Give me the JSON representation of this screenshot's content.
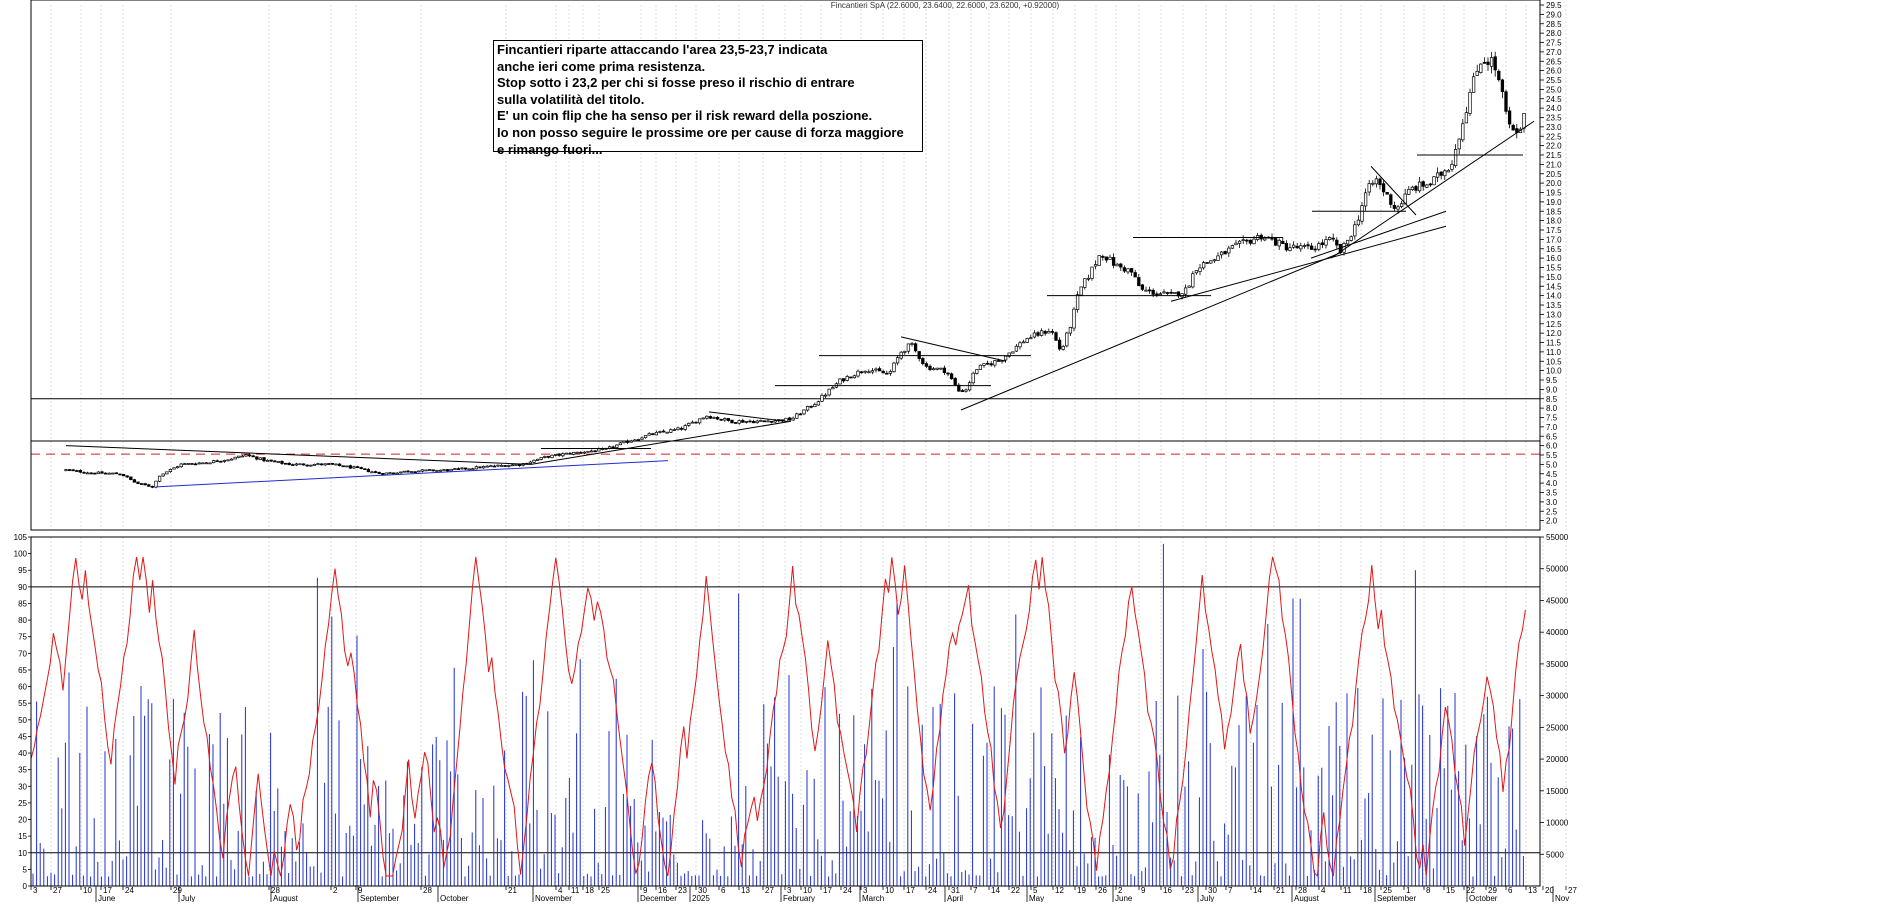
{
  "title": "Fincantieri SpA (22.6000, 23.6400, 22.6000, 23.6200, +0.92000)",
  "annotation_lines": [
    "Fincantieri riparte attaccando l'area 23,5-23,7 indicata",
    "anche ieri come prima resistenza.",
    "Stop sotto i 23,2 per chi si fosse preso il rischio di entrare",
    "sulla volatilità del titolo.",
    "E' un coin flip che ha senso per il risk reward della poszione.",
    "Io non posso seguire le prossime ore per cause di forza maggiore",
    " e rimango fuori..."
  ],
  "colors": {
    "candle": "#000000",
    "trendline_blue": "#1f2fcf",
    "support_dash": "#d42020",
    "oscillator": "#e01818",
    "volume": "#2030d0",
    "grid": "#c8c8c8"
  },
  "chart_data": [
    {
      "type": "candlestick",
      "name": "price",
      "ylim": [
        1.5,
        29.5
      ],
      "yticks": [
        "2.0",
        "2.5",
        "3.0",
        "3.5",
        "4.0",
        "4.5",
        "5.0",
        "5.5",
        "6.0",
        "6.5",
        "7.0",
        "7.5",
        "8.0",
        "8.5",
        "9.0",
        "9.5",
        "10.0",
        "10.5",
        "11.0",
        "11.5",
        "12.0",
        "12.5",
        "13.0",
        "13.5",
        "14.0",
        "14.5",
        "15.0",
        "15.5",
        "16.0",
        "16.5",
        "17.0",
        "17.5",
        "18.0",
        "18.5",
        "19.0",
        "19.5",
        "20.0",
        "20.5",
        "21.0",
        "21.5",
        "22.0",
        "22.5",
        "23.0",
        "23.5",
        "24.0",
        "24.5",
        "25.0",
        "25.5",
        "26.0",
        "26.5",
        "27.0",
        "27.5",
        "28.0",
        "28.5",
        "29.0",
        "29.5"
      ],
      "x_day_ticks": [
        [
          0,
          "3"
        ],
        [
          20,
          "27"
        ],
        [
          50,
          "10"
        ],
        [
          70,
          "17"
        ],
        [
          92,
          "24"
        ],
        [
          140,
          "29"
        ],
        [
          238,
          "28"
        ],
        [
          300,
          "2"
        ],
        [
          325,
          "9"
        ],
        [
          390,
          "28"
        ],
        [
          475,
          "21"
        ],
        [
          525,
          "4"
        ],
        [
          538,
          "11"
        ],
        [
          552,
          "18"
        ],
        [
          568,
          "25"
        ],
        [
          610,
          "9"
        ],
        [
          625,
          "16"
        ],
        [
          645,
          "23"
        ],
        [
          665,
          "30"
        ],
        [
          688,
          "6"
        ],
        [
          708,
          "13"
        ],
        [
          732,
          "27"
        ],
        [
          754,
          "3"
        ],
        [
          770,
          "10"
        ],
        [
          790,
          "17"
        ],
        [
          810,
          "24"
        ],
        [
          830,
          "3"
        ],
        [
          852,
          "10"
        ],
        [
          873,
          "17"
        ],
        [
          895,
          "24"
        ],
        [
          918,
          "31"
        ],
        [
          940,
          "7"
        ],
        [
          958,
          "14"
        ],
        [
          978,
          "22"
        ],
        [
          1000,
          "5"
        ],
        [
          1022,
          "12"
        ],
        [
          1044,
          "19"
        ],
        [
          1065,
          "26"
        ],
        [
          1085,
          "2"
        ],
        [
          1108,
          "9"
        ],
        [
          1130,
          "16"
        ],
        [
          1152,
          "23"
        ],
        [
          1175,
          "30"
        ],
        [
          1195,
          "7"
        ],
        [
          1220,
          "14"
        ],
        [
          1243,
          "21"
        ],
        [
          1265,
          "28"
        ],
        [
          1288,
          "4"
        ],
        [
          1310,
          "11"
        ],
        [
          1330,
          "18"
        ],
        [
          1350,
          "25"
        ],
        [
          1373,
          "1"
        ],
        [
          1393,
          "8"
        ],
        [
          1413,
          "15"
        ],
        [
          1433,
          "22"
        ],
        [
          1455,
          "29"
        ],
        [
          1475,
          "6"
        ],
        [
          1495,
          "13"
        ],
        [
          1512,
          "20"
        ],
        [
          1535,
          "27"
        ]
      ],
      "x_month_ticks": [
        [
          65,
          "June"
        ],
        [
          148,
          "July"
        ],
        [
          240,
          "August"
        ],
        [
          327,
          "September"
        ],
        [
          407,
          "October"
        ],
        [
          502,
          "November"
        ],
        [
          607,
          "December"
        ],
        [
          659,
          "2025"
        ],
        [
          750,
          "February"
        ],
        [
          829,
          "March"
        ],
        [
          914,
          "April"
        ],
        [
          996,
          "May"
        ],
        [
          1082,
          "June"
        ],
        [
          1167,
          "July"
        ],
        [
          1261,
          "August"
        ],
        [
          1344,
          "September"
        ],
        [
          1436,
          "October"
        ],
        [
          1522,
          "Nov"
        ]
      ],
      "anchors": [
        [
          35,
          4.7
        ],
        [
          60,
          4.55
        ],
        [
          90,
          4.5
        ],
        [
          105,
          4.0
        ],
        [
          122,
          3.8
        ],
        [
          128,
          4.4
        ],
        [
          150,
          5.0
        ],
        [
          175,
          5.1
        ],
        [
          200,
          5.3
        ],
        [
          215,
          5.5
        ],
        [
          235,
          5.2
        ],
        [
          260,
          5.0
        ],
        [
          300,
          5.0
        ],
        [
          325,
          4.8
        ],
        [
          350,
          4.5
        ],
        [
          380,
          4.65
        ],
        [
          420,
          4.7
        ],
        [
          460,
          4.9
        ],
        [
          490,
          5.0
        ],
        [
          515,
          5.4
        ],
        [
          540,
          5.6
        ],
        [
          575,
          5.8
        ],
        [
          595,
          6.2
        ],
        [
          620,
          6.6
        ],
        [
          650,
          6.9
        ],
        [
          675,
          7.6
        ],
        [
          700,
          7.3
        ],
        [
          730,
          7.3
        ],
        [
          760,
          7.4
        ],
        [
          785,
          8.3
        ],
        [
          810,
          9.5
        ],
        [
          835,
          10.1
        ],
        [
          858,
          9.8
        ],
        [
          870,
          11.0
        ],
        [
          880,
          11.4
        ],
        [
          895,
          10.2
        ],
        [
          915,
          10.0
        ],
        [
          928,
          8.9
        ],
        [
          935,
          9.0
        ],
        [
          945,
          10.1
        ],
        [
          970,
          10.6
        ],
        [
          995,
          11.7
        ],
        [
          1020,
          12.2
        ],
        [
          1030,
          11.0
        ],
        [
          1040,
          12.5
        ],
        [
          1048,
          14.2
        ],
        [
          1060,
          15.3
        ],
        [
          1070,
          16.3
        ],
        [
          1085,
          15.6
        ],
        [
          1100,
          15.3
        ],
        [
          1110,
          14.3
        ],
        [
          1140,
          14.0
        ],
        [
          1155,
          14.3
        ],
        [
          1165,
          15.5
        ],
        [
          1185,
          16.0
        ],
        [
          1200,
          16.5
        ],
        [
          1230,
          17.2
        ],
        [
          1255,
          16.6
        ],
        [
          1280,
          16.5
        ],
        [
          1300,
          17.0
        ],
        [
          1310,
          16.3
        ],
        [
          1325,
          17.8
        ],
        [
          1335,
          19.5
        ],
        [
          1345,
          20.2
        ],
        [
          1365,
          18.6
        ],
        [
          1380,
          19.7
        ],
        [
          1400,
          20.0
        ],
        [
          1420,
          21.0
        ],
        [
          1430,
          22.9
        ],
        [
          1440,
          25.0
        ],
        [
          1450,
          26.6
        ],
        [
          1462,
          26.5
        ],
        [
          1470,
          25.0
        ],
        [
          1478,
          23.0
        ],
        [
          1486,
          22.5
        ],
        [
          1494,
          23.6
        ]
      ],
      "horizontal_levels": [
        {
          "value": 8.5,
          "style": "solid",
          "color": "#000000"
        },
        {
          "value": 6.25,
          "style": "solid",
          "color": "#000000"
        },
        {
          "value": 5.55,
          "style": "dashed",
          "color": "#d42020"
        }
      ],
      "trendlines": [
        {
          "from": [
            125,
            3.8
          ],
          "to": [
            637,
            5.2
          ],
          "color": "#1f2fcf"
        },
        {
          "from": [
            35,
            6.0
          ],
          "to": [
            500,
            5.0
          ],
          "color": "#000000"
        },
        {
          "from": [
            500,
            5.0
          ],
          "to": [
            760,
            7.3
          ],
          "color": "#000000"
        },
        {
          "from": [
            678,
            7.8
          ],
          "to": [
            755,
            7.3
          ],
          "color": "#000000"
        },
        {
          "from": [
            510,
            5.85
          ],
          "to": [
            620,
            5.85
          ],
          "color": "#000000"
        },
        {
          "from": [
            744,
            9.2
          ],
          "to": [
            960,
            9.2
          ],
          "color": "#000000"
        },
        {
          "from": [
            788,
            10.8
          ],
          "to": [
            1000,
            10.8
          ],
          "color": "#000000"
        },
        {
          "from": [
            870,
            11.8
          ],
          "to": [
            975,
            10.5
          ],
          "color": "#000000"
        },
        {
          "from": [
            930,
            7.9
          ],
          "to": [
            1310,
            16.3
          ],
          "color": "#000000"
        },
        {
          "from": [
            1016,
            14.0
          ],
          "to": [
            1180,
            14.0
          ],
          "color": "#000000"
        },
        {
          "from": [
            1102,
            17.1
          ],
          "to": [
            1252,
            17.1
          ],
          "color": "#000000"
        },
        {
          "from": [
            1140,
            13.7
          ],
          "to": [
            1415,
            17.7
          ],
          "color": "#000000"
        },
        {
          "from": [
            1280,
            16.0
          ],
          "to": [
            1415,
            18.5
          ],
          "color": "#000000"
        },
        {
          "from": [
            1281,
            18.5
          ],
          "to": [
            1375,
            18.5
          ],
          "color": "#000000"
        },
        {
          "from": [
            1340,
            20.9
          ],
          "to": [
            1385,
            18.3
          ],
          "color": "#000000"
        },
        {
          "from": [
            1300,
            16.0
          ],
          "to": [
            1503,
            23.3
          ],
          "color": "#000000"
        },
        {
          "from": [
            1386,
            21.5
          ],
          "to": [
            1492,
            21.5
          ],
          "color": "#000000"
        }
      ]
    },
    {
      "type": "bar+line",
      "name": "volume and oscillator",
      "ylim_left": [
        0,
        105
      ],
      "ylim_right": [
        0,
        55000
      ],
      "yticks_left": [
        "0",
        "5",
        "10",
        "15",
        "20",
        "25",
        "30",
        "35",
        "40",
        "45",
        "50",
        "55",
        "60",
        "65",
        "70",
        "75",
        "80",
        "85",
        "90",
        "95",
        "100",
        "105"
      ],
      "yticks_right": [
        "5000",
        "10000",
        "15000",
        "20000",
        "25000",
        "30000",
        "35000",
        "40000",
        "45000",
        "50000",
        "55000"
      ],
      "oscillator_levels": [
        10,
        90
      ]
    }
  ]
}
